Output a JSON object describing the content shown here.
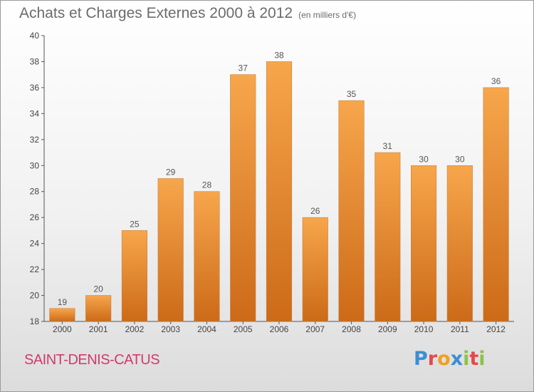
{
  "header": {
    "title": "Achats et Charges Externes 2000 à 2012",
    "unit": "(en milliers d'€)"
  },
  "commune": "SAINT-DENIS-CATUS",
  "logo": {
    "letters": [
      "P",
      "r",
      "o",
      "x",
      "i",
      "t",
      "i"
    ],
    "colors": [
      "#3b8fd4",
      "#e5484d",
      "#f0a020",
      "#3b8fd4",
      "#8bc34a",
      "#e5484d",
      "#8bc34a"
    ]
  },
  "chart_data": {
    "type": "bar",
    "categories": [
      "2000",
      "2001",
      "2002",
      "2003",
      "2004",
      "2005",
      "2006",
      "2007",
      "2008",
      "2009",
      "2010",
      "2011",
      "2012"
    ],
    "values": [
      19,
      20,
      25,
      29,
      28,
      37,
      38,
      26,
      35,
      31,
      30,
      30,
      36
    ],
    "title": "Achats et Charges Externes 2000 à 2012",
    "xlabel": "",
    "ylabel": "",
    "ylim": [
      18,
      40
    ],
    "yticks": [
      18,
      20,
      22,
      24,
      26,
      28,
      30,
      32,
      34,
      36,
      38,
      40
    ],
    "grid": false,
    "bar_color": "#f39a3e"
  }
}
